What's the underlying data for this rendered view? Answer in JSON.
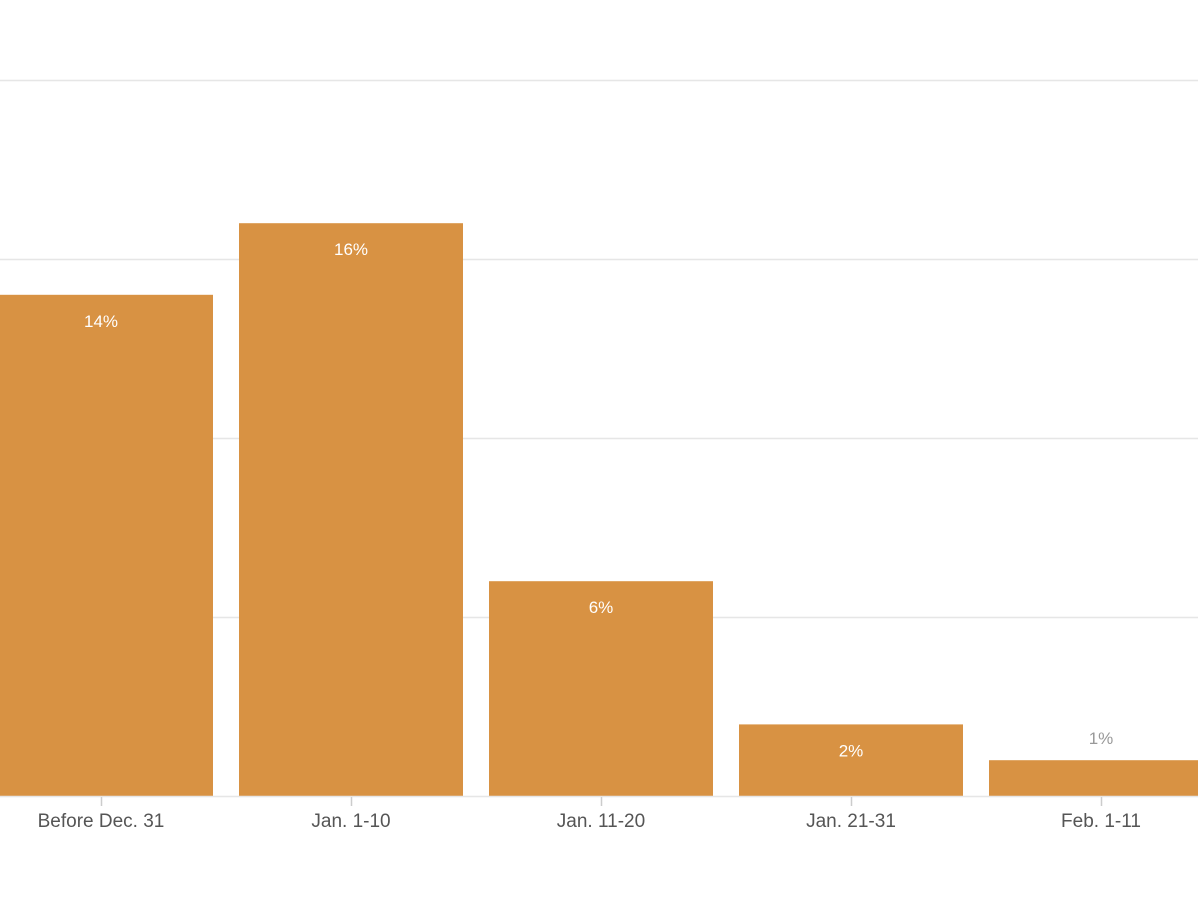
{
  "chart_data": {
    "type": "bar",
    "categories": [
      "Before Dec. 31",
      "Jan. 1-10",
      "Jan. 11-20",
      "Jan. 21-31",
      "Feb. 1-11"
    ],
    "values": [
      14,
      16,
      6,
      2,
      1
    ],
    "data_labels": [
      "14%",
      "16%",
      "6%",
      "2%",
      "1%"
    ],
    "title": "",
    "xlabel": "",
    "ylabel": "",
    "ylim": [
      0,
      20
    ],
    "y_gridlines": [
      5,
      10,
      15,
      20
    ],
    "grid": true,
    "legend": "none",
    "colors": {
      "bar": "#D89243",
      "label_inside": "#ffffff",
      "label_outside": "#999999",
      "grid": "#e6e6e6",
      "axis": "#cccccc"
    }
  }
}
